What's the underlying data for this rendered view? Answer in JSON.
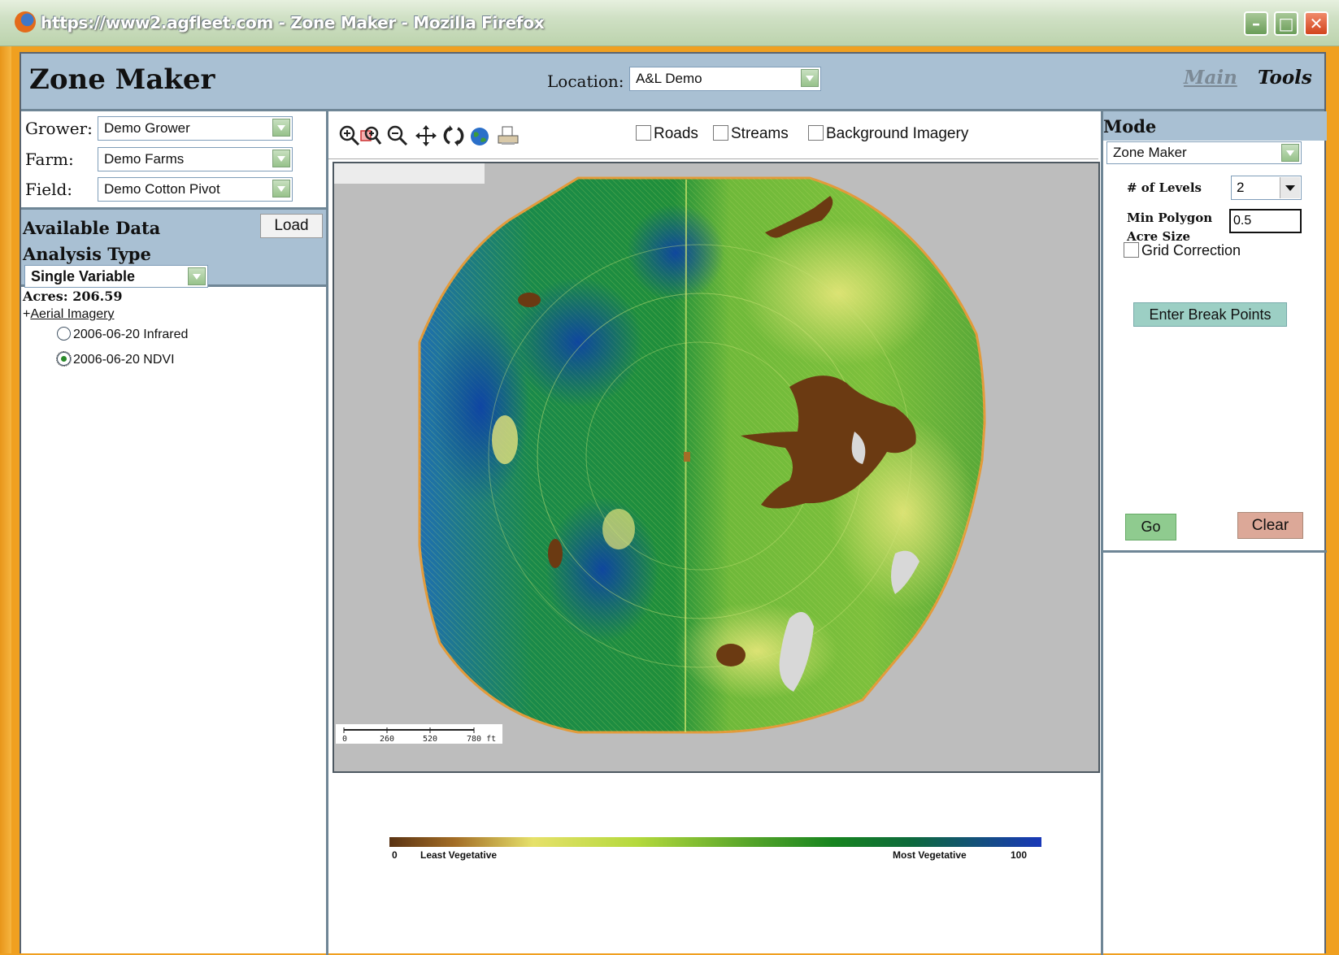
{
  "window": {
    "title": "https://www2.agfleet.com - Zone Maker - Mozilla Firefox"
  },
  "header": {
    "app_title": "Zone Maker",
    "location_label": "Location:",
    "location_value": "A&L Demo",
    "nav_main": "Main",
    "nav_tools": "Tools"
  },
  "left_panel": {
    "grower_label": "Grower:",
    "grower_value": "Demo Grower",
    "farm_label": "Farm:",
    "farm_value": "Demo Farms",
    "field_label": "Field:",
    "field_value": "Demo Cotton Pivot",
    "available_data_title": "Available Data",
    "load_button": "Load",
    "analysis_type_title": "Analysis Type",
    "analysis_type_value": "Single Variable",
    "acres": "Acres: 206.59",
    "aerial_prefix": "+",
    "aerial_link": "Aerial Imagery",
    "imagery_items": [
      {
        "label": "2006-06-20 Infrared",
        "selected": false
      },
      {
        "label": "2006-06-20 NDVI",
        "selected": true
      }
    ]
  },
  "map": {
    "layers": [
      {
        "label": "Roads",
        "checked": false
      },
      {
        "label": "Streams",
        "checked": false
      },
      {
        "label": "Background Imagery",
        "checked": false
      }
    ],
    "tools": [
      "zoom-in-icon",
      "zoom-box-icon",
      "zoom-out-icon",
      "pan-icon",
      "refresh-icon",
      "globe-icon",
      "print-icon"
    ],
    "scale_labels": [
      "0",
      "260",
      "520",
      "780 ft"
    ],
    "legend": {
      "min": "0",
      "min_label": "Least Vegetative",
      "max_label": "Most Vegetative",
      "max": "100"
    }
  },
  "right_panel": {
    "mode_title": "Mode",
    "mode_value": "Zone Maker",
    "levels_label": "# of Levels",
    "levels_value": "2",
    "min_polygon_label_1": "Min Polygon",
    "min_polygon_label_2": "Acre Size",
    "min_polygon_value": "0.5",
    "grid_correction_label": "Grid Correction",
    "break_points_button": "Enter Break Points",
    "go_button": "Go",
    "clear_button": "Clear"
  }
}
